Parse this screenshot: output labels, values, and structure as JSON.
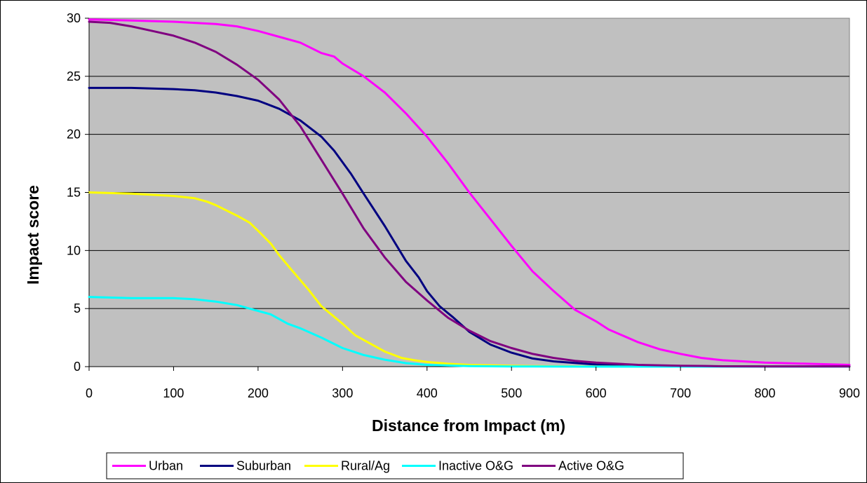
{
  "chart_data": {
    "type": "line",
    "title": "",
    "xlabel": "Distance from Impact (m)",
    "ylabel": "Impact score",
    "xlim": [
      0,
      900
    ],
    "ylim": [
      0,
      30
    ],
    "xticks": [
      0,
      100,
      200,
      300,
      400,
      500,
      600,
      700,
      800,
      900
    ],
    "yticks": [
      0,
      5,
      10,
      15,
      20,
      25,
      30
    ],
    "grid": "horizontal",
    "legend_position": "bottom",
    "plot_background": "#c0c0c0",
    "series": [
      {
        "name": "Urban",
        "color": "#ff00ff",
        "points": [
          [
            0,
            29.9
          ],
          [
            50,
            29.8
          ],
          [
            100,
            29.7
          ],
          [
            150,
            29.5
          ],
          [
            175,
            29.3
          ],
          [
            200,
            28.9
          ],
          [
            225,
            28.4
          ],
          [
            250,
            27.9
          ],
          [
            275,
            27.0
          ],
          [
            290,
            26.7
          ],
          [
            300,
            26.1
          ],
          [
            325,
            25.0
          ],
          [
            350,
            23.6
          ],
          [
            375,
            21.8
          ],
          [
            400,
            19.8
          ],
          [
            425,
            17.5
          ],
          [
            450,
            15.0
          ],
          [
            475,
            12.7
          ],
          [
            500,
            10.4
          ],
          [
            525,
            8.2
          ],
          [
            550,
            6.5
          ],
          [
            575,
            4.9
          ],
          [
            600,
            3.9
          ],
          [
            615,
            3.2
          ],
          [
            650,
            2.1
          ],
          [
            675,
            1.5
          ],
          [
            700,
            1.1
          ],
          [
            725,
            0.75
          ],
          [
            750,
            0.55
          ],
          [
            800,
            0.35
          ],
          [
            850,
            0.25
          ],
          [
            900,
            0.15
          ]
        ]
      },
      {
        "name": "Suburban",
        "color": "#000080",
        "points": [
          [
            0,
            24.0
          ],
          [
            50,
            24.0
          ],
          [
            100,
            23.9
          ],
          [
            125,
            23.8
          ],
          [
            150,
            23.6
          ],
          [
            175,
            23.3
          ],
          [
            200,
            22.9
          ],
          [
            225,
            22.2
          ],
          [
            250,
            21.2
          ],
          [
            275,
            19.8
          ],
          [
            290,
            18.6
          ],
          [
            310,
            16.6
          ],
          [
            325,
            14.9
          ],
          [
            350,
            12.1
          ],
          [
            375,
            9.1
          ],
          [
            390,
            7.7
          ],
          [
            400,
            6.5
          ],
          [
            415,
            5.2
          ],
          [
            430,
            4.3
          ],
          [
            450,
            3.0
          ],
          [
            475,
            1.9
          ],
          [
            500,
            1.2
          ],
          [
            525,
            0.7
          ],
          [
            550,
            0.45
          ],
          [
            600,
            0.18
          ],
          [
            650,
            0.08
          ],
          [
            700,
            0.04
          ],
          [
            800,
            0.02
          ],
          [
            900,
            0.01
          ]
        ]
      },
      {
        "name": "Rural/Ag",
        "color": "#ffff00",
        "points": [
          [
            0,
            15.0
          ],
          [
            50,
            14.9
          ],
          [
            100,
            14.7
          ],
          [
            125,
            14.5
          ],
          [
            140,
            14.2
          ],
          [
            150,
            13.9
          ],
          [
            175,
            13.0
          ],
          [
            190,
            12.4
          ],
          [
            200,
            11.7
          ],
          [
            215,
            10.6
          ],
          [
            225,
            9.6
          ],
          [
            240,
            8.3
          ],
          [
            260,
            6.6
          ],
          [
            275,
            5.2
          ],
          [
            300,
            3.7
          ],
          [
            315,
            2.7
          ],
          [
            325,
            2.3
          ],
          [
            350,
            1.3
          ],
          [
            370,
            0.75
          ],
          [
            385,
            0.55
          ],
          [
            400,
            0.4
          ],
          [
            425,
            0.25
          ],
          [
            450,
            0.15
          ],
          [
            500,
            0.07
          ],
          [
            550,
            0.03
          ],
          [
            600,
            0.01
          ],
          [
            700,
            0.0
          ],
          [
            900,
            0.0
          ]
        ]
      },
      {
        "name": "Inactive O&G",
        "color": "#00ffff",
        "points": [
          [
            0,
            6.0
          ],
          [
            50,
            5.9
          ],
          [
            100,
            5.9
          ],
          [
            125,
            5.8
          ],
          [
            150,
            5.6
          ],
          [
            175,
            5.3
          ],
          [
            190,
            5.0
          ],
          [
            200,
            4.8
          ],
          [
            215,
            4.5
          ],
          [
            225,
            4.1
          ],
          [
            235,
            3.7
          ],
          [
            250,
            3.3
          ],
          [
            275,
            2.5
          ],
          [
            300,
            1.6
          ],
          [
            325,
            1.0
          ],
          [
            350,
            0.6
          ],
          [
            375,
            0.3
          ],
          [
            400,
            0.15
          ],
          [
            450,
            0.05
          ],
          [
            500,
            0.02
          ],
          [
            600,
            0.0
          ],
          [
            900,
            0.0
          ]
        ]
      },
      {
        "name": "Active O&G",
        "color": "#800080",
        "points": [
          [
            0,
            29.7
          ],
          [
            25,
            29.6
          ],
          [
            50,
            29.3
          ],
          [
            75,
            28.9
          ],
          [
            100,
            28.5
          ],
          [
            125,
            27.9
          ],
          [
            150,
            27.1
          ],
          [
            175,
            26.0
          ],
          [
            200,
            24.7
          ],
          [
            225,
            23.0
          ],
          [
            250,
            20.7
          ],
          [
            275,
            17.8
          ],
          [
            300,
            14.9
          ],
          [
            325,
            11.9
          ],
          [
            350,
            9.4
          ],
          [
            375,
            7.3
          ],
          [
            400,
            5.7
          ],
          [
            425,
            4.2
          ],
          [
            450,
            3.1
          ],
          [
            475,
            2.2
          ],
          [
            500,
            1.6
          ],
          [
            525,
            1.1
          ],
          [
            550,
            0.75
          ],
          [
            575,
            0.5
          ],
          [
            600,
            0.35
          ],
          [
            650,
            0.15
          ],
          [
            700,
            0.08
          ],
          [
            725,
            0.06
          ],
          [
            750,
            0.03
          ],
          [
            800,
            0.02
          ],
          [
            900,
            0.01
          ]
        ]
      }
    ]
  }
}
